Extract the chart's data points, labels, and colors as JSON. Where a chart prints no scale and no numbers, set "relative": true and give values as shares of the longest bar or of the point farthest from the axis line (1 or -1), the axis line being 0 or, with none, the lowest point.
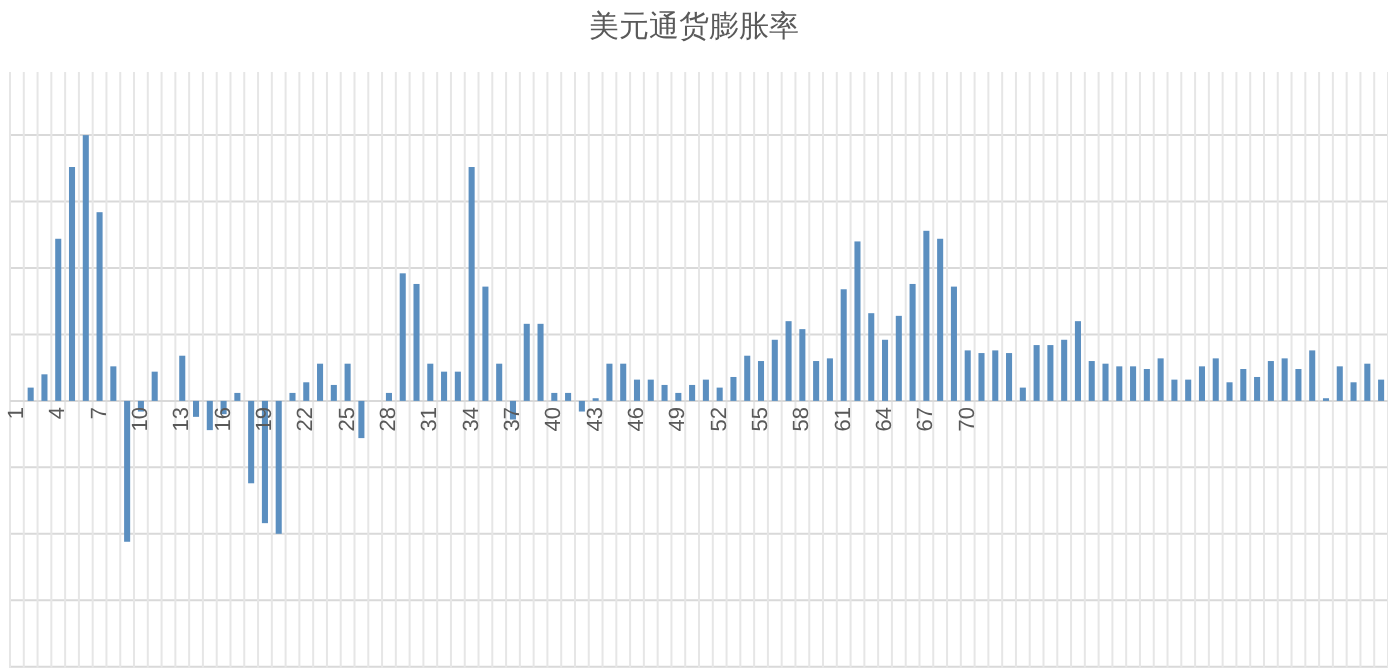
{
  "chart_data": {
    "type": "bar",
    "title": "美元通货膨胀率",
    "relative": true,
    "grid": true,
    "tick_labels": "x",
    "color": "#5b8fc0",
    "categories": [
      "1",
      null,
      null,
      "4",
      null,
      null,
      "7",
      null,
      null,
      "10",
      null,
      null,
      "13",
      null,
      null,
      "16",
      null,
      null,
      "19",
      null,
      null,
      "22",
      null,
      null,
      "25",
      null,
      null,
      "28",
      null,
      null,
      "31",
      null,
      null,
      "34",
      null,
      null,
      "37",
      null,
      null,
      "40",
      null,
      null,
      "43",
      null,
      null,
      "46",
      null,
      null,
      "49",
      null,
      null,
      "52",
      null,
      null,
      "55",
      null,
      null,
      "58",
      null,
      null,
      "61",
      null,
      null,
      "64",
      null,
      null,
      "67",
      null,
      null,
      "70",
      null,
      null,
      null,
      null,
      null,
      null,
      null,
      null,
      null,
      null,
      null,
      null,
      null,
      null,
      null,
      null,
      null,
      null,
      null,
      null,
      null,
      null,
      null,
      null,
      null,
      null,
      null,
      null,
      null,
      null
    ],
    "values": [
      0,
      0.05,
      0.1,
      0.61,
      0.88,
      1,
      0.71,
      0.13,
      -0.53,
      -0.04,
      0.11,
      0,
      0.17,
      -0.06,
      -0.11,
      -0.05,
      0.03,
      -0.31,
      -0.46,
      -0.5,
      0.03,
      0.07,
      0.14,
      0.06,
      0.14,
      -0.14,
      0,
      0.03,
      0.48,
      0.44,
      0.14,
      0.11,
      0.11,
      0.88,
      0.43,
      0.14,
      -0.07,
      0.29,
      0.29,
      0.03,
      0.03,
      -0.04,
      0.01,
      0.14,
      0.14,
      0.08,
      0.08,
      0.06,
      0.03,
      0.06,
      0.08,
      0.05,
      0.09,
      0.17,
      0.15,
      0.23,
      0.3,
      0.27,
      0.15,
      0.16,
      0.42,
      0.6,
      0.33,
      0.23,
      0.32,
      0.44,
      0.64,
      0.61,
      0.43,
      0.19,
      0.18,
      0.19,
      0.18,
      0.05,
      0.21,
      0.21,
      0.23,
      0.3,
      0.15,
      0.14,
      0.13,
      0.13,
      0.12,
      0.16,
      0.08,
      0.08,
      0.13,
      0.16,
      0.07,
      0.12,
      0.09,
      0.15,
      0.16,
      0.12,
      0.19,
      0.01,
      0.13,
      0.07,
      0.14,
      0.08
    ]
  }
}
